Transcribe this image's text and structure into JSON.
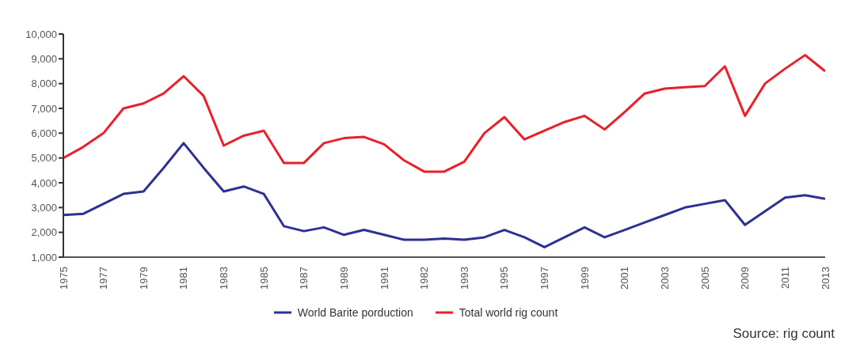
{
  "chart_data": {
    "type": "line",
    "categories": [
      "1975",
      null,
      "1977",
      null,
      "1979",
      null,
      "1981",
      null,
      "1983",
      null,
      "1985",
      null,
      "1987",
      null,
      "1989",
      null,
      "1991",
      null,
      "1982",
      null,
      "1993",
      null,
      "1995",
      null,
      "1997",
      null,
      "1999",
      null,
      "2001",
      null,
      "2003",
      null,
      "2005",
      null,
      "2009",
      null,
      "2011",
      null,
      "2013"
    ],
    "series": [
      {
        "name": "World Barite porduction",
        "color": "#2e3192",
        "values": [
          2700,
          2750,
          3150,
          3550,
          3650,
          4600,
          5600,
          4600,
          3650,
          3850,
          3550,
          2250,
          2050,
          2200,
          1900,
          2100,
          1900,
          1700,
          1700,
          1750,
          1700,
          1800,
          2100,
          1800,
          1400,
          1800,
          2200,
          1800,
          2100,
          2400,
          2700,
          3000,
          3150,
          3300,
          2300,
          2850,
          3400,
          3500,
          3350
        ]
      },
      {
        "name": "Total world rig count",
        "color": "#e8202a",
        "values": [
          5000,
          5450,
          6000,
          7000,
          7200,
          7600,
          8300,
          7500,
          5500,
          5900,
          6100,
          4800,
          4800,
          5600,
          5800,
          5850,
          5550,
          4900,
          4450,
          4450,
          4850,
          6000,
          6650,
          5750,
          6100,
          6450,
          6700,
          6150,
          6850,
          7600,
          7800,
          7850,
          7900,
          8700,
          6700,
          8000,
          8600,
          9150,
          8500
        ]
      }
    ],
    "ylim": [
      1000,
      10000
    ],
    "yticks": [
      {
        "value": 1000,
        "label": "1,000"
      },
      {
        "value": 2000,
        "label": "2,000"
      },
      {
        "value": 3000,
        "label": "3,000"
      },
      {
        "value": 4000,
        "label": "4,000"
      },
      {
        "value": 5000,
        "label": "5,000"
      },
      {
        "value": 6000,
        "label": "6,000"
      },
      {
        "value": 7000,
        "label": "7,000"
      },
      {
        "value": 8000,
        "label": "8,000"
      },
      {
        "value": 9000,
        "label": "9,000"
      },
      {
        "value": 10000,
        "label": "10,000"
      }
    ],
    "grid": false,
    "legend": "bottom",
    "annotations": [
      "Source: rig count"
    ]
  }
}
